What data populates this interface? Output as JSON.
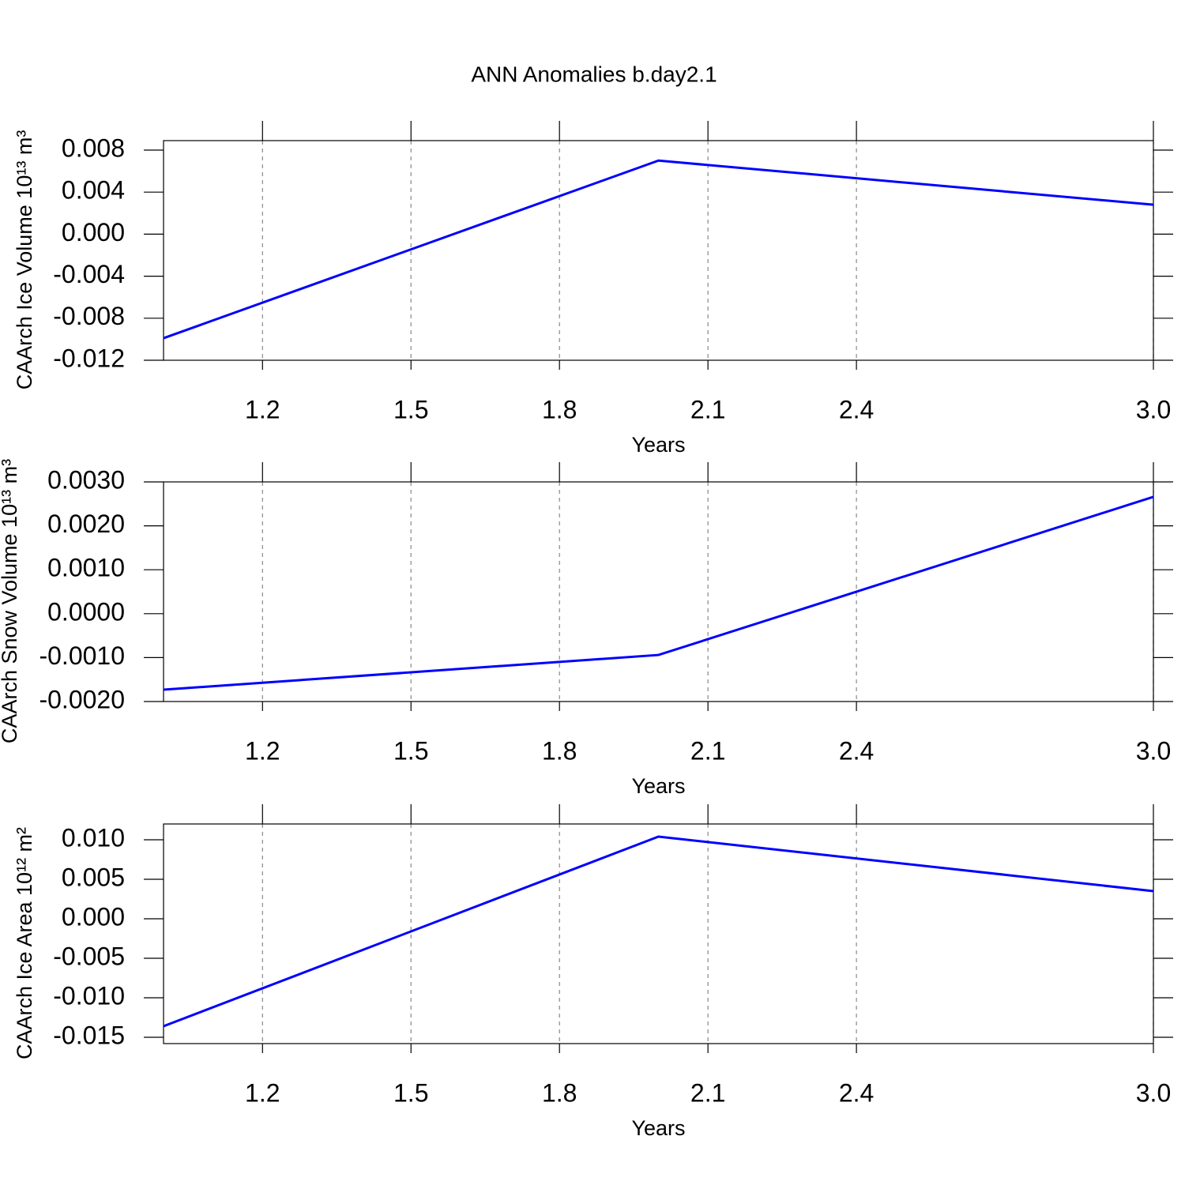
{
  "title": "ANN Anomalies b.day2.1",
  "chart_data": [
    {
      "type": "line",
      "xlabel": "Years",
      "ylabel": "CAArch Ice Volume 10¹³ m³",
      "x": [
        1,
        2,
        3
      ],
      "series": [
        {
          "color": "#0000ff",
          "values": [
            -0.0099,
            0.007,
            0.0028
          ]
        }
      ],
      "xlim": [
        1,
        3
      ],
      "xticks": [
        1.2,
        1.5,
        1.8,
        2.1,
        2.4,
        {
          "value": 3,
          "label": "3.0"
        }
      ],
      "ylim": [
        -0.012,
        0.0089
      ],
      "yticks": [
        -0.012,
        -0.008,
        -0.004,
        {
          "value": 0,
          "label": "0.000"
        },
        0.004,
        0.008
      ],
      "grid": "x"
    },
    {
      "type": "line",
      "xlabel": "Years",
      "ylabel": "CAArch Snow Volume 10¹³ m³",
      "x": [
        1,
        2,
        3
      ],
      "series": [
        {
          "color": "#0000ff",
          "values": [
            -0.00173,
            -0.00094,
            0.00266
          ]
        }
      ],
      "xlim": [
        1,
        3
      ],
      "xticks": [
        1.2,
        1.5,
        1.8,
        2.1,
        2.4,
        {
          "value": 3,
          "label": "3.0"
        }
      ],
      "ylim": [
        -0.002,
        0.003
      ],
      "yticks": [
        {
          "value": -0.002,
          "label": "-0.0020"
        },
        {
          "value": -0.001,
          "label": "-0.0010"
        },
        {
          "value": 0,
          "label": "0.0000"
        },
        {
          "value": 0.001,
          "label": "0.0010"
        },
        {
          "value": 0.002,
          "label": "0.0020"
        },
        {
          "value": 0.003,
          "label": "0.0030"
        }
      ],
      "grid": "x"
    },
    {
      "type": "line",
      "xlabel": "Years",
      "ylabel": "CAArch Ice Area 10¹² m²",
      "x": [
        1,
        2,
        3
      ],
      "series": [
        {
          "color": "#0000ff",
          "values": [
            -0.0136,
            0.0104,
            0.0035
          ]
        }
      ],
      "xlim": [
        1,
        3
      ],
      "xticks": [
        1.2,
        1.5,
        1.8,
        2.1,
        2.4,
        {
          "value": 3,
          "label": "3.0"
        }
      ],
      "ylim": [
        -0.0158,
        0.012
      ],
      "yticks": [
        -0.015,
        {
          "value": -0.01,
          "label": "-0.010"
        },
        -0.005,
        {
          "value": 0,
          "label": "0.000"
        },
        0.005,
        {
          "value": 0.01,
          "label": "0.010"
        }
      ],
      "grid": "x"
    }
  ]
}
